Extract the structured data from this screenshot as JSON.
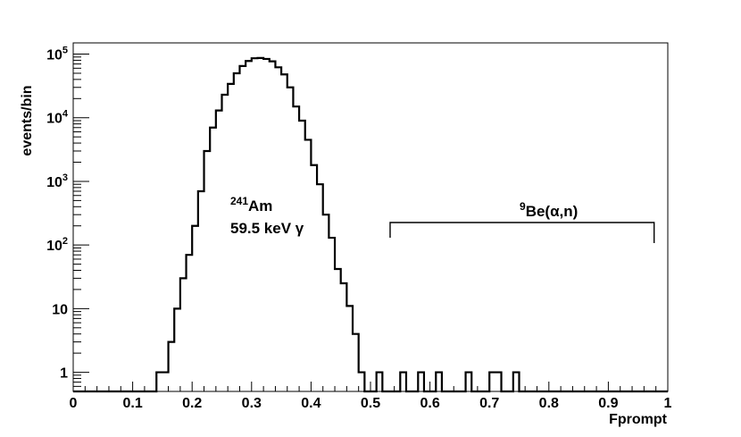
{
  "chart_data": {
    "type": "histogram",
    "xlabel": "Fprompt",
    "ylabel": "events/bin",
    "xlim": [
      0,
      1
    ],
    "ylim": [
      0.5,
      150000
    ],
    "y_scale": "log",
    "grid": false,
    "x_ticks": [
      "0",
      "0.1",
      "0.2",
      "0.3",
      "0.4",
      "0.5",
      "0.6",
      "0.7",
      "0.8",
      "0.9",
      "1"
    ],
    "y_ticks": [
      {
        "value": 1,
        "base": "1",
        "exp": ""
      },
      {
        "value": 10,
        "base": "10",
        "exp": ""
      },
      {
        "value": 100,
        "base": "10",
        "exp": "2"
      },
      {
        "value": 1000,
        "base": "10",
        "exp": "3"
      },
      {
        "value": 10000,
        "base": "10",
        "exp": "4"
      },
      {
        "value": 100000,
        "base": "10",
        "exp": "5"
      }
    ],
    "bin_width": 0.01,
    "bin_start": 0.0,
    "counts": [
      0,
      0,
      0,
      0,
      0,
      0,
      0,
      0,
      0,
      0,
      0,
      0,
      0,
      0,
      1,
      1,
      3,
      10,
      30,
      70,
      200,
      700,
      3000,
      7000,
      13000,
      23000,
      34000,
      50000,
      65000,
      78000,
      86000,
      87000,
      84000,
      77000,
      62000,
      48000,
      30000,
      15000,
      9000,
      4500,
      1800,
      900,
      300,
      130,
      42,
      25,
      11,
      4,
      1,
      0,
      0,
      1,
      0,
      0,
      0,
      1,
      0,
      0,
      1,
      0,
      0,
      1,
      0,
      0,
      0,
      0,
      1,
      0,
      0,
      0,
      1,
      1,
      0,
      0,
      1,
      0,
      0,
      0,
      0,
      0,
      0,
      0,
      0,
      0,
      0,
      0,
      0,
      0,
      0,
      0,
      0,
      0,
      0,
      0,
      0,
      0,
      0,
      0,
      0,
      0
    ],
    "counts_overrides": [],
    "annotations": [
      {
        "id": "am241",
        "sup": "241",
        "main": "Am",
        "line2": "59.5 keV γ"
      },
      {
        "id": "be9",
        "sup": "9",
        "main": "Be(α,n)"
      }
    ],
    "be_bracket": {
      "x_from": 0.533,
      "x_to": 0.977
    }
  },
  "plot_cfg_note": ""
}
